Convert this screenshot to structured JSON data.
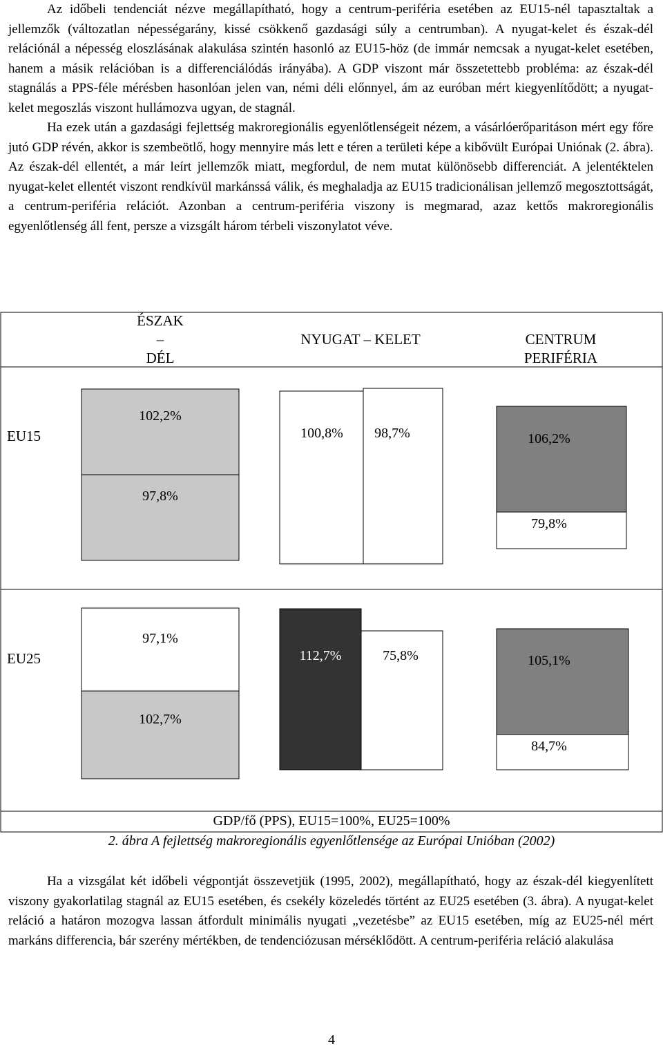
{
  "paragraphs": {
    "p1a": "Az időbeli tendenciát nézve megállapítható, hogy a centrum-periféria esetében az EU15-nél tapasztaltak a jellemzők (változatlan népességarány, kissé csökkenő gazdasági súly a centrumban). A nyugat-kelet és észak-dél relációnál a népesség eloszlásának alakulása szintén hasonló az EU15-höz (de immár nemcsak a nyugat-kelet esetében, hanem a másik relációban is a differenciálódás irányába). A GDP viszont már összetettebb probléma: az észak-dél stagnálás a PPS-féle mérésben hasonlóan jelen van, némi déli előnnyel, ám az euróban mért kiegyenlítődött; a nyugat-kelet megoszlás viszont hullámozva ugyan, de stagnál.",
    "p1b": "Ha ezek után a gazdasági fejlettség makroregionális egyenlőtlenségeit nézem, a vásárlóerőparitáson mért egy főre jutó GDP révén, akkor is szembeötlő, hogy mennyire más lett e téren a területi képe a kibővült Európai Uniónak (2. ábra). Az észak-dél ellentét, a már leírt jellemzők miatt, megfordul, de nem mutat különösebb differenciát. A jelentéktelen nyugat-kelet ellentét viszont rendkívül markánssá válik, és meghaladja az EU15 tradicionálisan jellemző megosztottságát, a centrum-periféria relációt. Azonban a centrum-periféria viszony is megmarad, azaz kettős makroregionális egyenlőtlenség áll fent, persze a vizsgált három térbeli viszonylatot véve.",
    "p2": "Ha a vizsgálat két időbeli végpontját összevetjük (1995, 2002), megállapítható, hogy az észak-dél kiegyenlített viszony gyakorlatilag stagnál az EU15 esetében, és csekély közeledés történt az EU25 esetében (3. ábra). A nyugat-kelet reláció a határon mozogva lassan átfordult minimális nyugati „vezetésbe” az EU15 esetében, míg az EU25-nél mért markáns differencia, bár szerény mértékben, de tendenciózusan mérséklődött. A centrum-periféria reláció alakulása"
  },
  "figure": {
    "columns": {
      "north_south": [
        "ÉSZAK",
        "–",
        "DÉL"
      ],
      "west_east": "NYUGAT – KELET",
      "center_periphery": [
        "CENTRUM",
        "PERIFÉRIA"
      ]
    },
    "rows": [
      "EU15",
      "EU25"
    ],
    "source": "GDP/fő (PPS), EU15=100%, EU25=100%",
    "caption": "2. ábra A fejlettség makroregionális egyenlőtlensége az Európai Unióban (2002)",
    "colors": {
      "light_gray": "#c8c8c8",
      "dark_gray": "#333333",
      "mid_gray": "#808080",
      "white": "#ffffff"
    }
  },
  "chart_data": {
    "type": "table",
    "title": "",
    "measure": "GDP/fő (PPS), EU15=100%, EU25=100%",
    "rows": [
      {
        "name": "EU15",
        "north_south": {
          "north": "102,2%",
          "south": "97,8%"
        },
        "west_east": {
          "west": "100,8%",
          "east": "98,7%"
        },
        "center_periphery": {
          "center": "106,2%",
          "periphery": "79,8%"
        }
      },
      {
        "name": "EU25",
        "north_south": {
          "north": "97,1%",
          "south": "102,7%"
        },
        "west_east": {
          "west": "112,7%",
          "east": "75,8%"
        },
        "center_periphery": {
          "center": "105,1%",
          "periphery": "84,7%"
        }
      }
    ]
  },
  "page_number": "4"
}
